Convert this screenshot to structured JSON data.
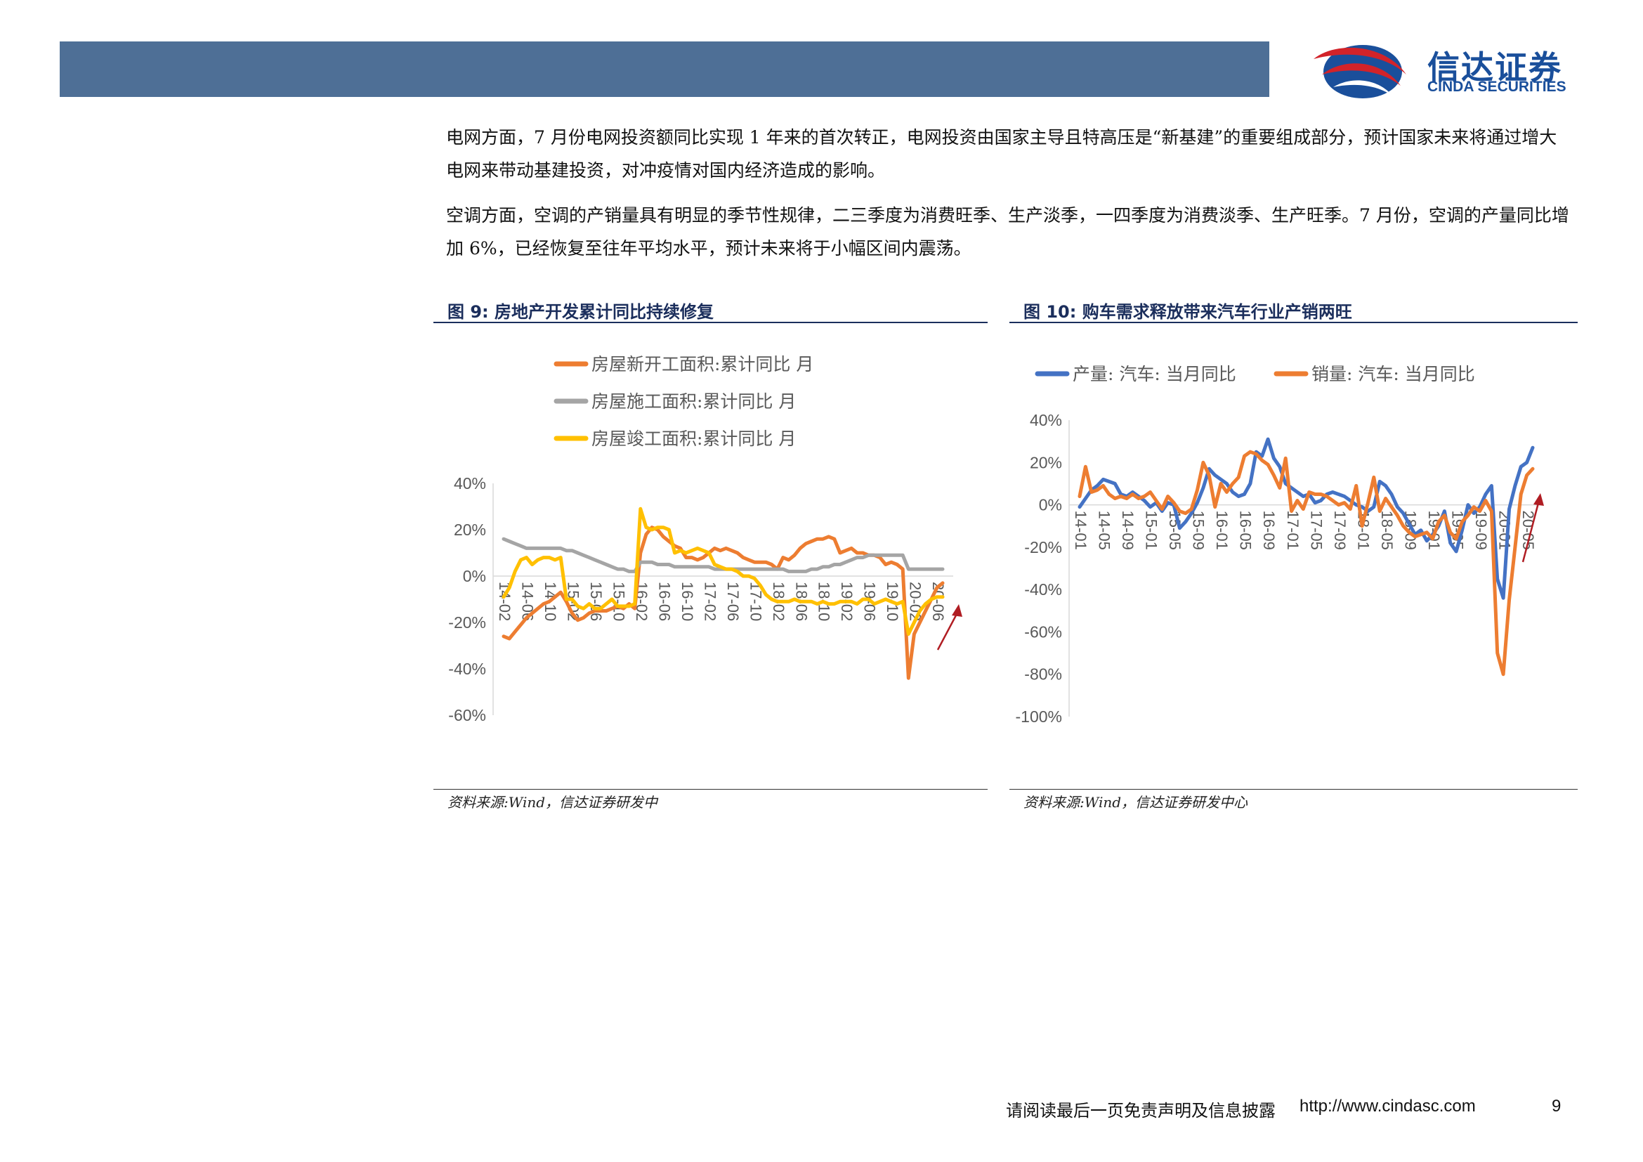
{
  "colors": {
    "header_bar": "#4e6f96",
    "brand": "#1a4f9b",
    "logo_red": "#d2232a",
    "orange": "#ed7d31",
    "gray": "#a5a5a5",
    "yellow": "#ffc000",
    "blue": "#4472c4",
    "arrow": "#b01d23"
  },
  "logo": {
    "cn": "信达证券",
    "en": "CINDA SECURITIES",
    "icon": "cinda-swoosh-logo"
  },
  "paragraphs": [
    "电网方面，7 月份电网投资额同比实现 1 年来的首次转正，电网投资由国家主导且特高压是“新基建”的重要组成部分，预计国家未来将通过增大电网来带动基建投资，对冲疫情对国内经济造成的影响。",
    "空调方面，空调的产销量具有明显的季节性规律，二三季度为消费旺季、生产淡季，一四季度为消费淡季、生产旺季。7 月份，空调的产量同比增加 6%，已经恢复至往年平均水平，预计未来将于小幅区间内震荡。"
  ],
  "figures": [
    {
      "title": "图 9: 房地产开发累计同比持续修复",
      "source": "资料来源:Wind，信达证券研发中"
    },
    {
      "title": "图 10: 购车需求释放带来汽车行业产销两旺",
      "source": "资料来源:Wind，信达证券研发中心"
    }
  ],
  "footer": {
    "note": "请阅读最后一页免责声明及信息披露",
    "url": "http://www.cindasc.com",
    "page": "9"
  },
  "chart_data": [
    {
      "type": "line",
      "ylim": [
        -60,
        40
      ],
      "yticks": [
        40,
        20,
        0,
        -20,
        -40,
        -60
      ],
      "ytick_labels": [
        "40%",
        "20%",
        "0%",
        "-20%",
        "-40%",
        "-60%"
      ],
      "x_tick_labels": [
        "14-02",
        "14-06",
        "14-10",
        "15-02",
        "15-06",
        "15-10",
        "16-02",
        "16-06",
        "16-10",
        "17-02",
        "17-06",
        "17-10",
        "18-02",
        "18-06",
        "18-10",
        "19-02",
        "19-06",
        "19-10",
        "20-02",
        "20-06"
      ],
      "x_start_month": "2014-02",
      "legend_position": "top",
      "has_trend_arrow": true,
      "series": [
        {
          "name": "房屋新开工面积:累计同比 月",
          "color": "#ed7d31",
          "values": [
            -26,
            -27,
            -24,
            -21,
            -18,
            -16,
            -14,
            -12,
            -11,
            -9,
            -7,
            -11,
            -16,
            -19,
            -18,
            -16,
            -15,
            -15,
            -15,
            -14,
            -13,
            -14,
            -12,
            -14,
            10,
            18,
            21,
            20,
            17,
            15,
            13,
            12,
            8,
            8,
            7,
            8,
            10,
            12,
            11,
            12,
            11,
            10,
            8,
            7,
            6,
            6,
            6,
            5,
            3,
            8,
            7,
            9,
            12,
            14,
            15,
            16,
            16,
            17,
            16,
            10,
            11,
            12,
            10,
            10,
            9,
            9,
            8,
            5,
            6,
            5,
            3,
            -44,
            -25,
            -20,
            -15,
            -10,
            -5,
            -3
          ]
        },
        {
          "name": "房屋施工面积:累计同比 月",
          "color": "#a5a5a5",
          "values": [
            16,
            15,
            14,
            13,
            12,
            12,
            12,
            12,
            12,
            12,
            12,
            11,
            11,
            10,
            9,
            8,
            7,
            6,
            5,
            4,
            3,
            3,
            2,
            2,
            6,
            6,
            6,
            5,
            5,
            5,
            4,
            4,
            4,
            4,
            4,
            4,
            4,
            3,
            3,
            3,
            3,
            3,
            3,
            3,
            3,
            3,
            3,
            3,
            3,
            3,
            2,
            2,
            2,
            2,
            3,
            3,
            4,
            4,
            5,
            5,
            6,
            7,
            8,
            8,
            9,
            9,
            9,
            9,
            9,
            9,
            9,
            3,
            3,
            3,
            3,
            3,
            3,
            3
          ]
        },
        {
          "name": "房屋竣工面积:累计同比 月",
          "color": "#ffc000",
          "values": [
            -9,
            -5,
            2,
            7,
            8,
            5,
            7,
            8,
            8,
            7,
            8,
            -10,
            -10,
            -13,
            -14,
            -12,
            -14,
            -14,
            -12,
            -10,
            -13,
            -13,
            -13,
            -12,
            29,
            21,
            20,
            21,
            21,
            20,
            10,
            11,
            10,
            11,
            12,
            11,
            10,
            5,
            4,
            3,
            3,
            2,
            0,
            0,
            -1,
            -4,
            -8,
            -10,
            -11,
            -11,
            -11,
            -10,
            -11,
            -11,
            -11,
            -12,
            -11,
            -12,
            -12,
            -11,
            -11,
            -11,
            -12,
            -10,
            -10,
            -12,
            -11,
            -10,
            -11,
            -12,
            -11,
            -25,
            -20,
            -15,
            -12,
            -10,
            -9,
            -9
          ]
        }
      ]
    },
    {
      "type": "line",
      "ylim": [
        -100,
        40
      ],
      "yticks": [
        40,
        20,
        0,
        -20,
        -40,
        -60,
        -80,
        -100
      ],
      "ytick_labels": [
        "40%",
        "20%",
        "0%",
        "-20%",
        "-40%",
        "-60%",
        "-80%",
        "-100%"
      ],
      "x_tick_labels": [
        "14-01",
        "14-05",
        "14-09",
        "15-01",
        "15-05",
        "15-09",
        "16-01",
        "16-05",
        "16-09",
        "17-01",
        "17-05",
        "17-09",
        "18-01",
        "18-05",
        "18-09",
        "19-01",
        "19-05",
        "19-09",
        "20-01",
        "20-05"
      ],
      "x_start_month": "2014-01",
      "legend_position": "top",
      "has_trend_arrow": true,
      "series": [
        {
          "name": "产量: 汽车: 当月同比",
          "color": "#4472c4",
          "values": [
            -1,
            3,
            7,
            9,
            12,
            11,
            10,
            5,
            4,
            6,
            4,
            2,
            -1,
            1,
            -3,
            1,
            0,
            -11,
            -8,
            -4,
            1,
            8,
            17,
            14,
            12,
            10,
            6,
            4,
            5,
            10,
            25,
            23,
            31,
            22,
            18,
            10,
            8,
            6,
            4,
            5,
            1,
            2,
            5,
            6,
            5,
            4,
            2,
            0,
            -1,
            -3,
            -1,
            11,
            9,
            5,
            -1,
            -4,
            -9,
            -14,
            -12,
            -17,
            -14,
            -10,
            -3,
            -18,
            -22,
            -12,
            0,
            -4,
            -1,
            5,
            9,
            -35,
            -44,
            -2,
            9,
            18,
            20,
            27
          ]
        },
        {
          "name": "销量: 汽车: 当月同比",
          "color": "#ed7d31",
          "values": [
            4,
            18,
            6,
            7,
            9,
            5,
            3,
            4,
            3,
            5,
            3,
            4,
            6,
            2,
            -2,
            4,
            1,
            -3,
            -4,
            -2,
            7,
            20,
            14,
            -1,
            10,
            6,
            10,
            13,
            23,
            25,
            24,
            21,
            19,
            14,
            8,
            22,
            -3,
            2,
            -2,
            6,
            5,
            5,
            4,
            2,
            0,
            1,
            -2,
            9,
            -10,
            1,
            13,
            -3,
            3,
            -1,
            -5,
            -10,
            -13,
            -15,
            -14,
            -13,
            -16,
            -8,
            -5,
            -13,
            -16,
            -8,
            -5,
            -1,
            -3,
            2,
            -3,
            -70,
            -80,
            -45,
            -20,
            5,
            14,
            17
          ]
        }
      ]
    }
  ]
}
